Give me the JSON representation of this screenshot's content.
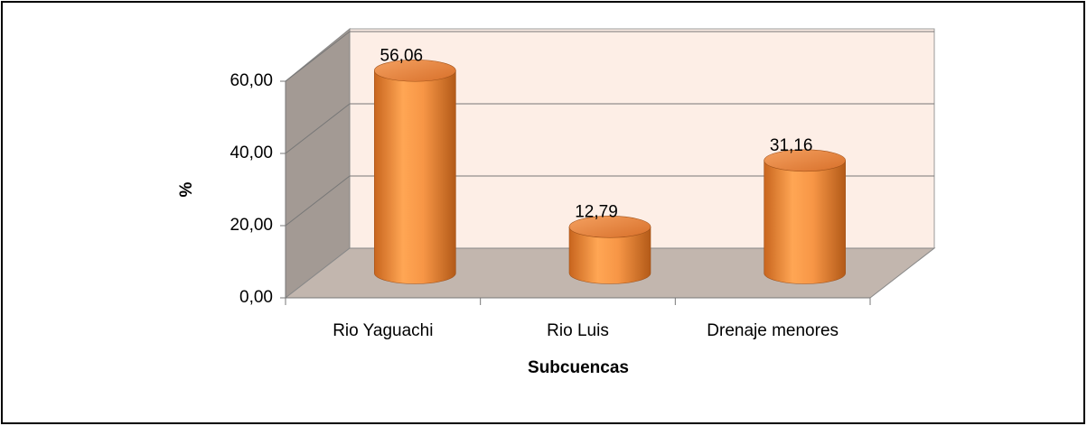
{
  "chart_data": {
    "type": "bar3d",
    "x_label": "Subcuencas",
    "y_label": "%",
    "categories": [
      "Rio Yaguachi",
      "Rio Luis",
      "Drenaje menores"
    ],
    "values": [
      56.06,
      12.79,
      31.16
    ],
    "value_labels": [
      "56,06",
      "12,79",
      "31,16"
    ],
    "color": "#f79646",
    "ylim": [
      0,
      60
    ],
    "yticks": [
      {
        "value": 0,
        "label": "0,00"
      },
      {
        "value": 20,
        "label": "20,00"
      },
      {
        "value": 40,
        "label": "40,00"
      },
      {
        "value": 60,
        "label": "60,00"
      }
    ],
    "grid": true
  }
}
